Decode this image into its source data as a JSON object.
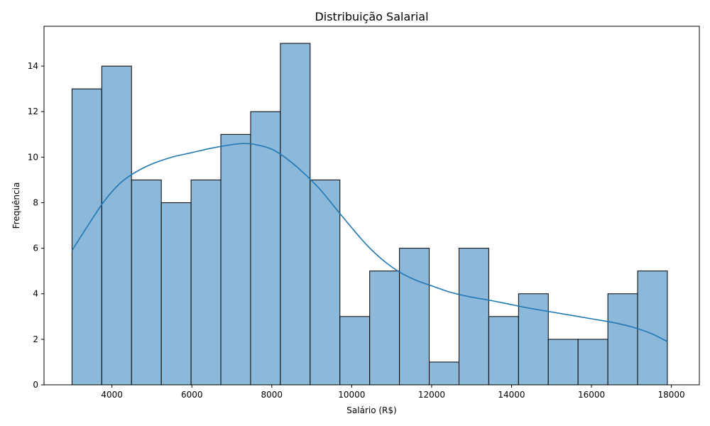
{
  "chart_data": {
    "type": "bar",
    "subtype": "histogram",
    "title": "Distribuição Salarial",
    "xlabel": "Salário (R$)",
    "ylabel": "Frequência",
    "xlim": [
      2300,
      18700
    ],
    "ylim": [
      0,
      15.75
    ],
    "x_ticks": [
      4000,
      6000,
      8000,
      10000,
      12000,
      14000,
      16000,
      18000
    ],
    "x_tick_labels": [
      "4000",
      "6000",
      "8000",
      "10000",
      "12000",
      "14000",
      "16000",
      "18000"
    ],
    "y_ticks": [
      0,
      2,
      4,
      6,
      8,
      10,
      12,
      14
    ],
    "y_tick_labels": [
      "0",
      "2",
      "4",
      "6",
      "8",
      "10",
      "12",
      "14"
    ],
    "grid": false,
    "bins": {
      "edges": [
        3000,
        3745,
        4490,
        5235,
        5980,
        6725,
        7470,
        8215,
        8960,
        9705,
        10450,
        11195,
        11940,
        12685,
        13430,
        14175,
        14920,
        15665,
        16410,
        17155,
        17900
      ],
      "counts": [
        13,
        14,
        9,
        8,
        9,
        11,
        12,
        15,
        9,
        3,
        5,
        6,
        1,
        6,
        3,
        4,
        2,
        2,
        4,
        5
      ]
    },
    "kde": {
      "x": [
        3000,
        3400,
        3800,
        4200,
        4600,
        5000,
        5500,
        6000,
        6500,
        7000,
        7300,
        7600,
        8000,
        8400,
        8800,
        9200,
        9600,
        10000,
        10400,
        10800,
        11200,
        11600,
        12000,
        12500,
        13000,
        13500,
        14000,
        14500,
        15000,
        15500,
        16000,
        16500,
        17000,
        17500,
        17900
      ],
      "y": [
        5.9,
        7.0,
        8.05,
        8.85,
        9.35,
        9.7,
        10.0,
        10.2,
        10.4,
        10.55,
        10.6,
        10.55,
        10.35,
        9.9,
        9.3,
        8.6,
        7.75,
        6.9,
        6.1,
        5.45,
        4.95,
        4.6,
        4.35,
        4.05,
        3.85,
        3.7,
        3.52,
        3.35,
        3.2,
        3.05,
        2.9,
        2.75,
        2.55,
        2.25,
        1.9
      ]
    },
    "colors": {
      "bar_fill": "#8cb9da",
      "bar_edge": "#000000",
      "kde_line": "#1f77b4",
      "axes": "#000000"
    }
  }
}
